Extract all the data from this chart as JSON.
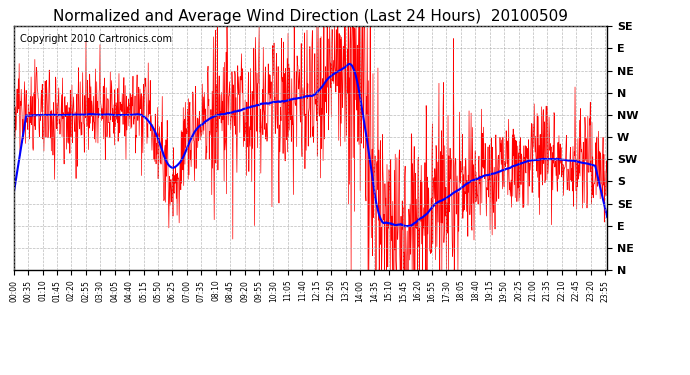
{
  "title": "Normalized and Average Wind Direction (Last 24 Hours)  20100509",
  "copyright_text": "Copyright 2010 Cartronics.com",
  "background_color": "#ffffff",
  "plot_bg_color": "#ffffff",
  "grid_color": "#aaaaaa",
  "ytick_labels_bottom_to_top": [
    "N",
    "NE",
    "E",
    "SE",
    "S",
    "SW",
    "W",
    "NW",
    "N",
    "NE",
    "E",
    "SE"
  ],
  "ytick_values": [
    0,
    1,
    2,
    3,
    4,
    5,
    6,
    7,
    8,
    9,
    10,
    11
  ],
  "xtick_labels": [
    "00:00",
    "00:35",
    "01:10",
    "01:45",
    "02:20",
    "02:55",
    "03:30",
    "04:05",
    "04:40",
    "05:15",
    "05:50",
    "06:25",
    "07:00",
    "07:35",
    "08:10",
    "08:45",
    "09:20",
    "09:55",
    "10:30",
    "11:05",
    "11:40",
    "12:15",
    "12:50",
    "13:25",
    "14:00",
    "14:35",
    "15:10",
    "15:45",
    "16:20",
    "16:55",
    "17:30",
    "18:05",
    "18:40",
    "19:15",
    "19:50",
    "20:25",
    "21:00",
    "21:35",
    "22:10",
    "22:45",
    "23:20",
    "23:55"
  ],
  "red_color": "#ff0000",
  "blue_color": "#0000ff",
  "title_fontsize": 11,
  "copyright_fontsize": 7,
  "seed": 42
}
